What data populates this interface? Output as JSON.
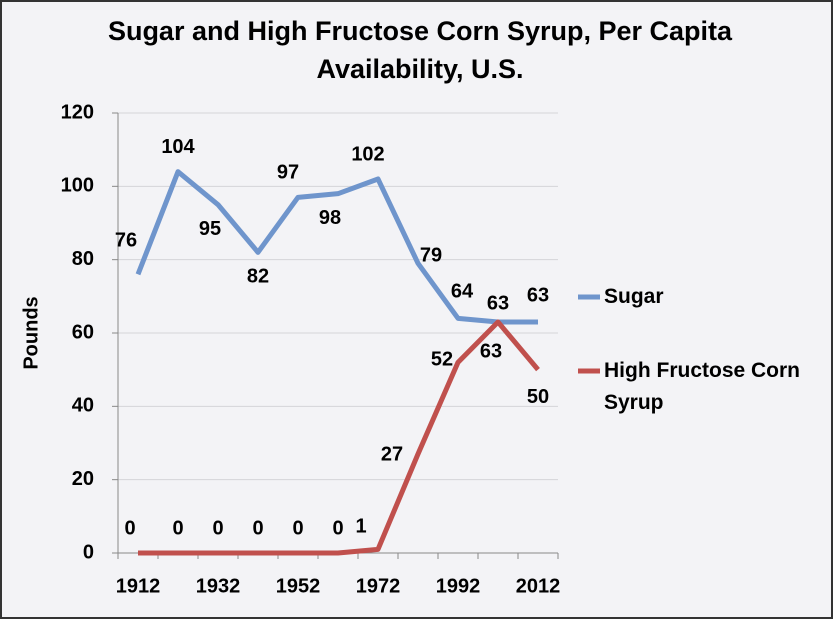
{
  "chart_data": {
    "type": "line",
    "title": "Sugar and High Fructose Corn Syrup, Per Capita Availability, U.S.",
    "y_label": "Pounds",
    "categories": [
      "1912",
      null,
      "1932",
      null,
      "1952",
      null,
      "1972",
      null,
      "1992",
      null,
      "2012"
    ],
    "series": [
      {
        "name": "Sugar",
        "color": "#6f95cc",
        "values": [
          76,
          104,
          95,
          82,
          97,
          98,
          102,
          79,
          64,
          63,
          63
        ]
      },
      {
        "name": "High Fructose Corn Syrup",
        "color": "#c0504d",
        "values": [
          0,
          0,
          0,
          0,
          0,
          0,
          1,
          27,
          52,
          63,
          50
        ]
      }
    ],
    "ylim": [
      0,
      120
    ],
    "yticks": [
      0,
      20,
      40,
      60,
      80,
      100,
      120
    ],
    "grid": true,
    "legend": "right"
  }
}
